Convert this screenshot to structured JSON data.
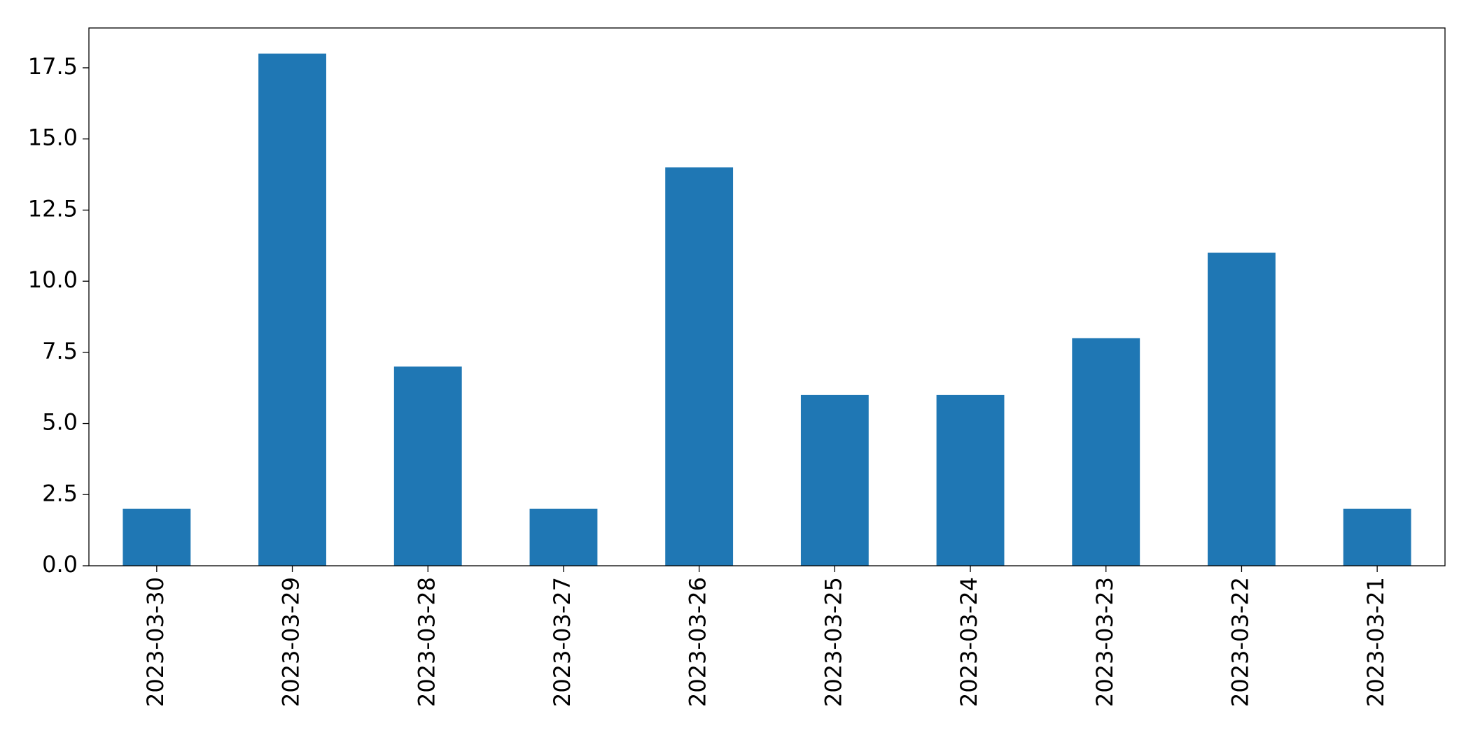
{
  "chart_data": {
    "type": "bar",
    "categories": [
      "2023-03-30",
      "2023-03-29",
      "2023-03-28",
      "2023-03-27",
      "2023-03-26",
      "2023-03-25",
      "2023-03-24",
      "2023-03-23",
      "2023-03-22",
      "2023-03-21"
    ],
    "values": [
      2,
      18,
      7,
      2,
      14,
      6,
      6,
      8,
      11,
      2
    ],
    "color": "#1f77b4",
    "ylim": [
      0,
      18.9
    ],
    "yticks": [
      {
        "value": 0,
        "label": "0.0"
      },
      2.5,
      {
        "value": 5,
        "label": "5.0"
      },
      7.5,
      {
        "value": 10,
        "label": "10.0"
      },
      12.5,
      {
        "value": 15,
        "label": "15.0"
      },
      17.5
    ],
    "grid": false
  }
}
